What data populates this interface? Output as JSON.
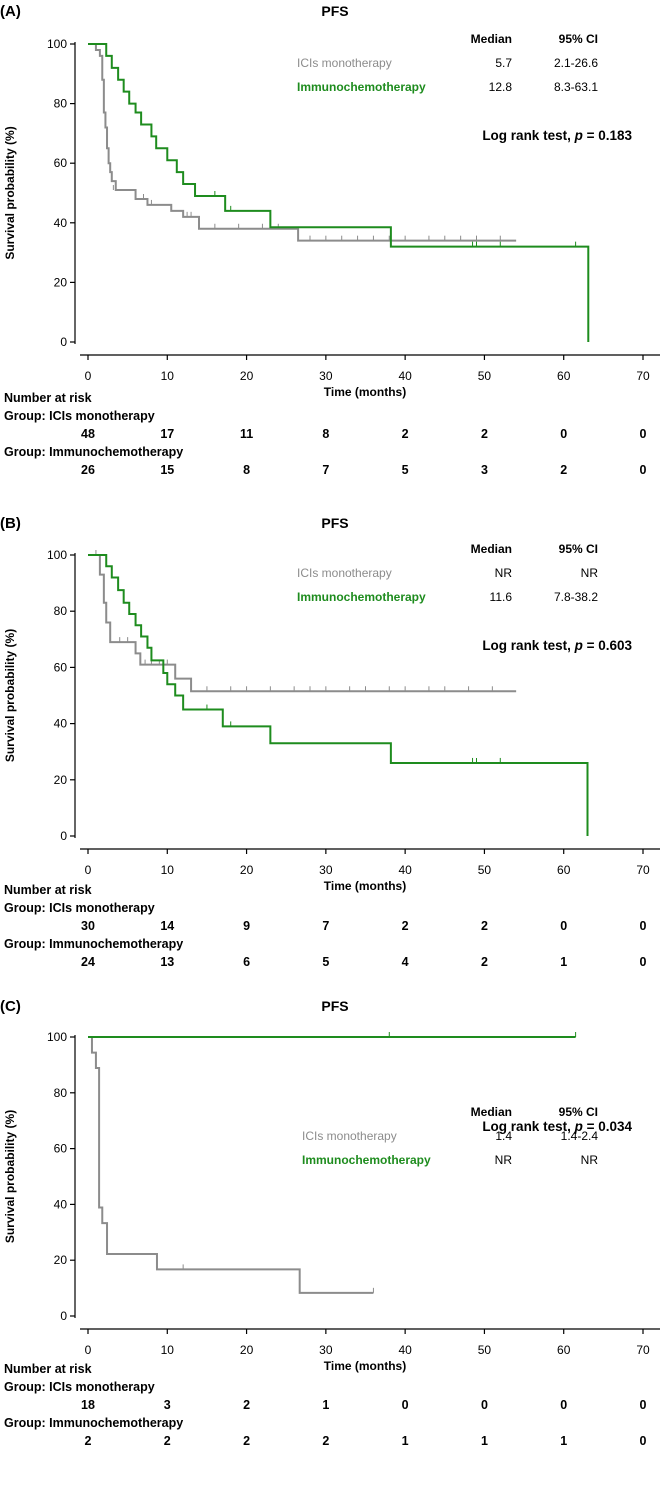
{
  "colors": {
    "mono": "#8c8c8c",
    "chemo": "#1e8c1e",
    "axis": "#000000"
  },
  "risk_title": "Number at risk",
  "chart_data": [
    {
      "type": "line",
      "panel_label": "(A)",
      "title": "PFS",
      "xlabel": "Time (months)",
      "ylabel": "Survival probability (%)",
      "xlim": [
        0,
        70
      ],
      "ylim": [
        0,
        100
      ],
      "xticks": [
        0,
        10,
        20,
        30,
        40,
        50,
        60,
        70
      ],
      "yticks": [
        0,
        20,
        40,
        60,
        80,
        100
      ],
      "table_headers": {
        "median": "Median",
        "ci": "95% CI"
      },
      "logrank": {
        "prefix": "Log rank test, ",
        "p_symbol": "p",
        "value": " = 0.183"
      },
      "risk_times": [
        0,
        10,
        20,
        30,
        40,
        50,
        60,
        70
      ],
      "series": [
        {
          "name": "ICIs monotherapy",
          "key": "mono",
          "median": "5.7",
          "ci": "2.1-26.6",
          "group_label": "Group: ICIs monotherapy",
          "risk": [
            48,
            17,
            11,
            8,
            2,
            2,
            0,
            0
          ],
          "steps": [
            [
              0,
              100
            ],
            [
              1,
              98
            ],
            [
              1.5,
              96
            ],
            [
              1.8,
              88
            ],
            [
              2.0,
              77
            ],
            [
              2.2,
              72
            ],
            [
              2.4,
              65
            ],
            [
              2.6,
              60
            ],
            [
              2.8,
              57
            ],
            [
              3.0,
              54
            ],
            [
              3.5,
              51
            ],
            [
              6,
              48
            ],
            [
              7.5,
              46
            ],
            [
              10.5,
              44
            ],
            [
              12,
              42
            ],
            [
              14,
              38
            ],
            [
              26.5,
              34
            ],
            [
              54,
              34
            ]
          ],
          "censors": [
            [
              3.2,
              51
            ],
            [
              7,
              48
            ],
            [
              8,
              46
            ],
            [
              12.5,
              42
            ],
            [
              13,
              42
            ],
            [
              16,
              38
            ],
            [
              19,
              38
            ],
            [
              22,
              38
            ],
            [
              24,
              38
            ],
            [
              28,
              34
            ],
            [
              30,
              34
            ],
            [
              32,
              34
            ],
            [
              34,
              34
            ],
            [
              36,
              34
            ],
            [
              38,
              34
            ],
            [
              40,
              34
            ],
            [
              43,
              34
            ],
            [
              45,
              34
            ],
            [
              47,
              34
            ],
            [
              49,
              34
            ],
            [
              52,
              34
            ]
          ]
        },
        {
          "name": "Immunochemotherapy",
          "key": "chemo",
          "median": "12.8",
          "ci": "8.3-63.1",
          "group_label": "Group: Immunochemotherapy",
          "risk": [
            26,
            15,
            8,
            7,
            5,
            3,
            2,
            0
          ],
          "steps": [
            [
              0,
              100
            ],
            [
              2.3,
              96
            ],
            [
              3,
              92
            ],
            [
              3.8,
              88
            ],
            [
              4.5,
              84
            ],
            [
              5.2,
              80
            ],
            [
              6,
              77
            ],
            [
              6.7,
              73
            ],
            [
              8,
              69
            ],
            [
              8.6,
              65
            ],
            [
              10,
              61
            ],
            [
              11.2,
              57
            ],
            [
              12,
              53
            ],
            [
              13.5,
              49
            ],
            [
              17.3,
              44
            ],
            [
              23,
              38.5
            ],
            [
              38.2,
              32
            ],
            [
              63.1,
              0
            ]
          ],
          "censors": [
            [
              16,
              49
            ],
            [
              18,
              44
            ],
            [
              48.5,
              32
            ],
            [
              49,
              32
            ],
            [
              52,
              32
            ],
            [
              61.5,
              32
            ]
          ]
        }
      ]
    },
    {
      "type": "line",
      "panel_label": "(B)",
      "title": "PFS",
      "xlabel": "Time (months)",
      "ylabel": "Survival probability (%)",
      "xlim": [
        0,
        70
      ],
      "ylim": [
        0,
        100
      ],
      "xticks": [
        0,
        10,
        20,
        30,
        40,
        50,
        60,
        70
      ],
      "yticks": [
        0,
        20,
        40,
        60,
        80,
        100
      ],
      "table_headers": {
        "median": "Median",
        "ci": "95% CI"
      },
      "logrank": {
        "prefix": "Log rank test, ",
        "p_symbol": "p",
        "value": " = 0.603"
      },
      "risk_times": [
        0,
        10,
        20,
        30,
        40,
        50,
        60,
        70
      ],
      "series": [
        {
          "name": "ICIs monotherapy",
          "key": "mono",
          "median": "NR",
          "ci": "NR",
          "group_label": "Group: ICIs monotherapy",
          "risk": [
            30,
            14,
            9,
            7,
            2,
            2,
            0,
            0
          ],
          "steps": [
            [
              0,
              100
            ],
            [
              1.5,
              93
            ],
            [
              2,
              83
            ],
            [
              2.3,
              76
            ],
            [
              2.8,
              69
            ],
            [
              6,
              65
            ],
            [
              6.6,
              61
            ],
            [
              11,
              56
            ],
            [
              13,
              51.5
            ],
            [
              54,
              51.5
            ]
          ],
          "censors": [
            [
              1,
              100
            ],
            [
              4,
              69
            ],
            [
              5,
              69
            ],
            [
              7.2,
              61
            ],
            [
              8,
              61
            ],
            [
              9,
              61
            ],
            [
              10,
              61
            ],
            [
              15,
              51.5
            ],
            [
              18,
              51.5
            ],
            [
              20,
              51.5
            ],
            [
              23,
              51.5
            ],
            [
              26,
              51.5
            ],
            [
              28,
              51.5
            ],
            [
              30,
              51.5
            ],
            [
              33,
              51.5
            ],
            [
              35,
              51.5
            ],
            [
              38,
              51.5
            ],
            [
              40,
              51.5
            ],
            [
              43,
              51.5
            ],
            [
              45,
              51.5
            ],
            [
              48,
              51.5
            ],
            [
              51,
              51.5
            ]
          ]
        },
        {
          "name": "Immunochemotherapy",
          "key": "chemo",
          "median": "11.6",
          "ci": "7.8-38.2",
          "group_label": "Group: Immunochemotherapy",
          "risk": [
            24,
            13,
            6,
            5,
            4,
            2,
            1,
            0
          ],
          "steps": [
            [
              0,
              100
            ],
            [
              2.3,
              96
            ],
            [
              3,
              92
            ],
            [
              3.8,
              87.5
            ],
            [
              4.5,
              83
            ],
            [
              5.2,
              79
            ],
            [
              6,
              75
            ],
            [
              6.7,
              71
            ],
            [
              7.5,
              67
            ],
            [
              8,
              62.5
            ],
            [
              9.5,
              58
            ],
            [
              10,
              54
            ],
            [
              11,
              50
            ],
            [
              12,
              45
            ],
            [
              17,
              39
            ],
            [
              23,
              33
            ],
            [
              38.2,
              26
            ],
            [
              63,
              0
            ]
          ],
          "censors": [
            [
              15,
              45
            ],
            [
              18,
              39
            ],
            [
              48.5,
              26
            ],
            [
              49,
              26
            ],
            [
              52,
              26
            ]
          ]
        }
      ]
    },
    {
      "type": "line",
      "panel_label": "(C)",
      "title": "PFS",
      "xlabel": "Time (months)",
      "ylabel": "Survival probability (%)",
      "xlim": [
        0,
        70
      ],
      "ylim": [
        0,
        100
      ],
      "xticks": [
        0,
        10,
        20,
        30,
        40,
        50,
        60,
        70
      ],
      "yticks": [
        0,
        20,
        40,
        60,
        80,
        100
      ],
      "table_headers": {
        "median": "Median",
        "ci": "95% CI"
      },
      "logrank": {
        "prefix": "Log rank test, ",
        "p_symbol": "p",
        "value": " = 0.034"
      },
      "risk_times": [
        0,
        10,
        20,
        30,
        40,
        50,
        60,
        70
      ],
      "series": [
        {
          "name": "ICIs monotherapy",
          "key": "mono",
          "median": "1.4",
          "ci": "1.4-2.4",
          "group_label": "Group: ICIs monotherapy",
          "risk": [
            18,
            3,
            2,
            1,
            0,
            0,
            0,
            0
          ],
          "steps": [
            [
              0,
              100
            ],
            [
              0.5,
              94.4
            ],
            [
              1,
              88.9
            ],
            [
              1.4,
              38.9
            ],
            [
              1.8,
              33.3
            ],
            [
              2.4,
              22.2
            ],
            [
              8.7,
              16.7
            ],
            [
              26.7,
              8.3
            ],
            [
              36,
              8.3
            ]
          ],
          "censors": [
            [
              12,
              16.7
            ],
            [
              36,
              8.3
            ]
          ]
        },
        {
          "name": "Immunochemotherapy",
          "key": "chemo",
          "median": "NR",
          "ci": "NR",
          "group_label": "Group: Immunochemotherapy",
          "risk": [
            2,
            2,
            2,
            2,
            1,
            1,
            1,
            0
          ],
          "steps": [
            [
              0,
              100
            ],
            [
              61.5,
              100
            ]
          ],
          "censors": [
            [
              38,
              100
            ],
            [
              61.5,
              100
            ]
          ]
        }
      ]
    }
  ]
}
